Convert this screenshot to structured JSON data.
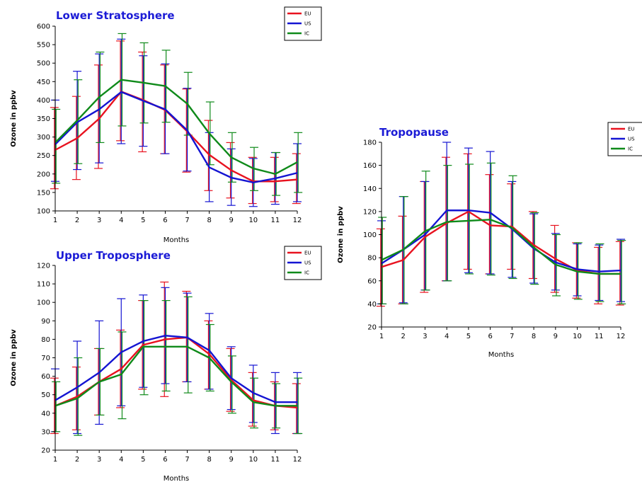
{
  "chart_data": [
    {
      "type": "line",
      "title": "Lower Stratosphere",
      "xlabel": "Months",
      "ylabel": "Ozone in ppbv",
      "xlim": [
        1,
        12
      ],
      "ylim": [
        100,
        600
      ],
      "yticks": [
        100,
        150,
        200,
        250,
        300,
        350,
        400,
        450,
        500,
        550,
        600
      ],
      "x": [
        1,
        2,
        3,
        4,
        5,
        6,
        7,
        8,
        9,
        10,
        11,
        12
      ],
      "legend": "top-right",
      "grid": false,
      "series": [
        {
          "name": "EU",
          "color": "#e8121f",
          "values": [
            265,
            297,
            350,
            423,
            400,
            373,
            315,
            252,
            210,
            180,
            180,
            185
          ],
          "err_low": [
            160,
            185,
            215,
            290,
            260,
            255,
            205,
            155,
            135,
            120,
            125,
            120
          ],
          "err_high": [
            380,
            410,
            495,
            560,
            530,
            495,
            430,
            345,
            285,
            245,
            245,
            255
          ]
        },
        {
          "name": "US",
          "color": "#1414d2",
          "values": [
            280,
            340,
            375,
            422,
            398,
            375,
            318,
            218,
            190,
            177,
            188,
            203
          ],
          "err_low": [
            180,
            212,
            230,
            282,
            275,
            255,
            208,
            125,
            115,
            112,
            118,
            125
          ],
          "err_high": [
            400,
            478,
            525,
            565,
            520,
            498,
            432,
            312,
            268,
            242,
            258,
            282
          ]
        },
        {
          "name": "IC",
          "color": "#0f8a1a",
          "values": [
            285,
            345,
            408,
            455,
            447,
            438,
            390,
            310,
            245,
            215,
            200,
            232
          ],
          "err_low": [
            175,
            228,
            285,
            330,
            338,
            340,
            305,
            225,
            178,
            155,
            142,
            150
          ],
          "err_high": [
            375,
            455,
            530,
            580,
            555,
            535,
            475,
            395,
            312,
            272,
            258,
            312
          ]
        }
      ]
    },
    {
      "type": "line",
      "title": "Upper Troposphere",
      "xlabel": "Months",
      "ylabel": "Ozone in ppbv",
      "xlim": [
        1,
        12
      ],
      "ylim": [
        20,
        120
      ],
      "yticks": [
        20,
        30,
        40,
        50,
        60,
        70,
        80,
        90,
        100,
        110,
        120
      ],
      "x": [
        1,
        2,
        3,
        4,
        5,
        6,
        7,
        8,
        9,
        10,
        11,
        12
      ],
      "legend": "top-right",
      "grid": false,
      "series": [
        {
          "name": "EU",
          "color": "#e8121f",
          "values": [
            44,
            49,
            57,
            64,
            77,
            80,
            81,
            72,
            58,
            47,
            44,
            43
          ],
          "err_low": [
            29,
            31,
            39,
            43,
            53,
            49,
            57,
            53,
            41,
            33,
            31,
            29
          ],
          "err_high": [
            59,
            65,
            75,
            85,
            101,
            111,
            106,
            90,
            75,
            62,
            57,
            56
          ]
        },
        {
          "name": "US",
          "color": "#1414d2",
          "values": [
            47,
            54,
            62,
            73,
            79,
            82,
            81,
            74,
            59,
            51,
            46,
            46
          ],
          "err_low": [
            30,
            29,
            34,
            44,
            54,
            56,
            57,
            53,
            42,
            35,
            29,
            29
          ],
          "err_high": [
            64,
            79,
            90,
            102,
            104,
            108,
            105,
            94,
            76,
            66,
            62,
            62
          ]
        },
        {
          "name": "IC",
          "color": "#0f8a1a",
          "values": [
            44,
            48,
            57,
            61,
            76,
            76,
            76,
            70,
            57,
            46,
            44,
            44
          ],
          "err_low": [
            30,
            28,
            39,
            37,
            50,
            52,
            51,
            52,
            40,
            32,
            32,
            29
          ],
          "err_high": [
            57,
            70,
            75,
            84,
            101,
            101,
            103,
            88,
            71,
            59,
            56,
            59
          ]
        }
      ]
    },
    {
      "type": "line",
      "title": "Tropopause",
      "xlabel": "Months",
      "ylabel": "Ozone in ppbv",
      "xlim": [
        1,
        12
      ],
      "ylim": [
        20,
        180
      ],
      "yticks": [
        20,
        40,
        60,
        80,
        100,
        120,
        140,
        160,
        180
      ],
      "x": [
        1,
        2,
        3,
        4,
        5,
        6,
        7,
        8,
        9,
        10,
        11,
        12
      ],
      "legend": "top-right",
      "grid": false,
      "series": [
        {
          "name": "EU",
          "color": "#e8121f",
          "values": [
            72,
            78,
            98,
            110,
            120,
            108,
            107,
            91,
            79,
            69,
            66,
            66
          ],
          "err_low": [
            38,
            40,
            50,
            60,
            70,
            66,
            70,
            62,
            50,
            45,
            40,
            39
          ],
          "err_high": [
            105,
            116,
            146,
            167,
            170,
            152,
            144,
            120,
            108,
            93,
            89,
            94
          ]
        },
        {
          "name": "US",
          "color": "#1414d2",
          "values": [
            75,
            87,
            100,
            121,
            121,
            119,
            105,
            88,
            76,
            70,
            68,
            69
          ],
          "err_low": [
            40,
            41,
            52,
            60,
            67,
            66,
            63,
            58,
            52,
            47,
            43,
            42
          ],
          "err_high": [
            112,
            133,
            146,
            180,
            175,
            172,
            146,
            118,
            101,
            92,
            91,
            96
          ]
        },
        {
          "name": "IC",
          "color": "#0f8a1a",
          "values": [
            78,
            87,
            103,
            111,
            112,
            113,
            106,
            89,
            74,
            68,
            66,
            66
          ],
          "err_low": [
            40,
            40,
            52,
            60,
            66,
            65,
            62,
            57,
            47,
            44,
            42,
            40
          ],
          "err_high": [
            115,
            133,
            155,
            160,
            161,
            162,
            151,
            119,
            100,
            93,
            92,
            95
          ]
        }
      ]
    }
  ]
}
